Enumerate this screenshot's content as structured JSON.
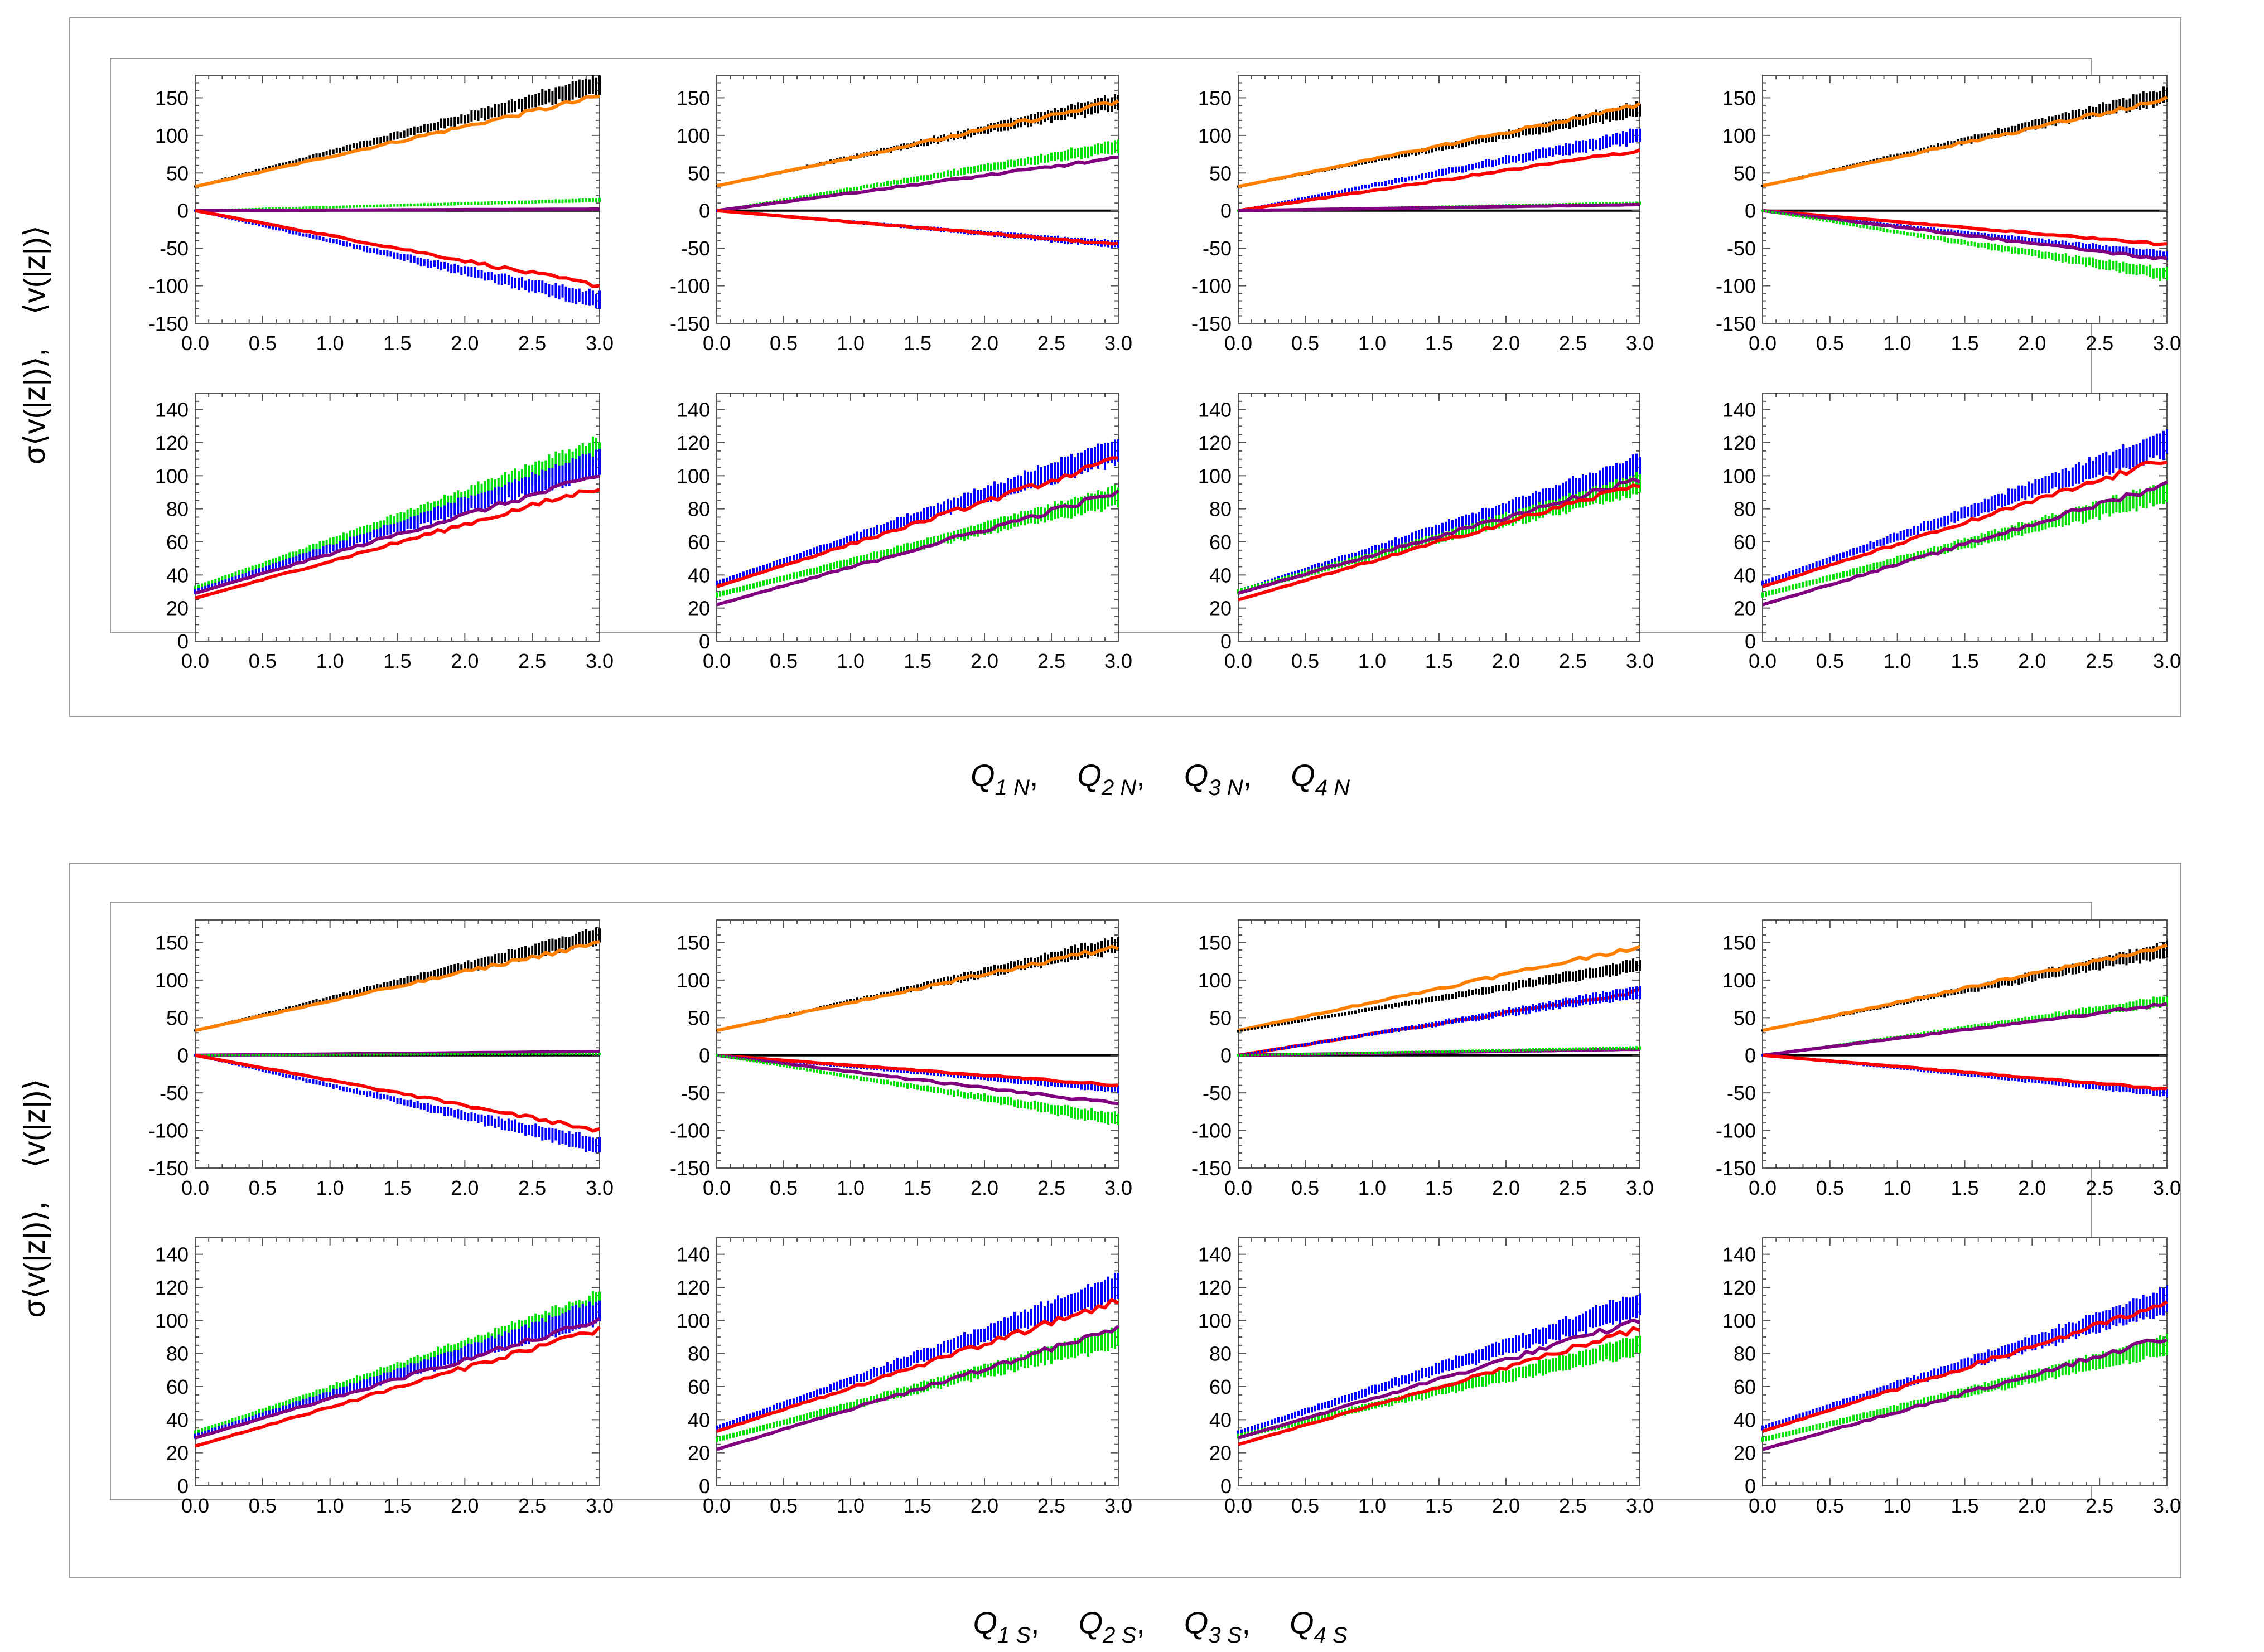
{
  "chart_data": [
    {
      "type": "line",
      "group": "N",
      "xlabel_parts": [
        {
          "main": "Q",
          "sub": "1 N",
          "sep": ","
        },
        {
          "main": "Q",
          "sub": "2 N",
          "sep": ","
        },
        {
          "main": "Q",
          "sub": "3 N",
          "sep": ","
        },
        {
          "main": "Q",
          "sub": "4 N",
          "sep": ""
        }
      ],
      "ylabel_top": "⟨v(|z|)⟩",
      "ylabel_bottom": "σ⟨v(|z|)⟩,",
      "xlim": [
        0,
        3
      ],
      "xticks": [
        "0.0",
        "0.5",
        "1.0",
        "1.5",
        "2.0",
        "2.5",
        "3.0"
      ],
      "top_ylim": [
        -150,
        180
      ],
      "top_yticks": [
        "150",
        "100",
        "50",
        "0",
        "-50",
        "-100",
        "-150"
      ],
      "bottom_ylim": [
        0,
        150
      ],
      "bottom_yticks": [
        "140",
        "120",
        "100",
        "80",
        "60",
        "40",
        "20",
        "0"
      ],
      "panels_top": [
        {
          "series": [
            {
              "color": "#000000",
              "style": "errorbar",
              "start": 32,
              "end": 168
            },
            {
              "color": "#ff8000",
              "style": "line",
              "start": 32,
              "end": 152
            },
            {
              "color": "#00e000",
              "style": "errorbar",
              "start": 0,
              "end": 14
            },
            {
              "color": "#800080",
              "style": "line",
              "start": 0,
              "end": 2
            },
            {
              "color": "#0000ff",
              "style": "errorbar",
              "start": 0,
              "end": -120
            },
            {
              "color": "#ff0000",
              "style": "line",
              "start": 0,
              "end": -100
            }
          ]
        },
        {
          "series": [
            {
              "color": "#000000",
              "style": "errorbar",
              "start": 33,
              "end": 145
            },
            {
              "color": "#ff8000",
              "style": "line",
              "start": 33,
              "end": 145
            },
            {
              "color": "#00e000",
              "style": "errorbar",
              "start": 0,
              "end": 85
            },
            {
              "color": "#800080",
              "style": "line",
              "start": 0,
              "end": 70
            },
            {
              "color": "#0000ff",
              "style": "errorbar",
              "start": 0,
              "end": -45
            },
            {
              "color": "#ff0000",
              "style": "line",
              "start": 0,
              "end": -45
            }
          ]
        },
        {
          "series": [
            {
              "color": "#000000",
              "style": "errorbar",
              "start": 32,
              "end": 135
            },
            {
              "color": "#ff8000",
              "style": "line",
              "start": 32,
              "end": 140
            },
            {
              "color": "#0000ff",
              "style": "errorbar",
              "start": 0,
              "end": 100
            },
            {
              "color": "#ff0000",
              "style": "line",
              "start": 0,
              "end": 80
            },
            {
              "color": "#00e000",
              "style": "errorbar",
              "start": 0,
              "end": 10
            },
            {
              "color": "#800080",
              "style": "line",
              "start": 0,
              "end": 8
            }
          ]
        },
        {
          "series": [
            {
              "color": "#000000",
              "style": "errorbar",
              "start": 33,
              "end": 153
            },
            {
              "color": "#ff8000",
              "style": "line",
              "start": 33,
              "end": 148
            },
            {
              "color": "#0000ff",
              "style": "errorbar",
              "start": 0,
              "end": -60
            },
            {
              "color": "#ff0000",
              "style": "line",
              "start": 0,
              "end": -45
            },
            {
              "color": "#800080",
              "style": "line",
              "start": 0,
              "end": -65
            },
            {
              "color": "#00e000",
              "style": "errorbar",
              "start": 0,
              "end": -85
            }
          ]
        }
      ],
      "panels_bottom": [
        {
          "series": [
            {
              "color": "#00e000",
              "style": "errorbar",
              "start": 32,
              "end": 115
            },
            {
              "color": "#0000ff",
              "style": "errorbar",
              "start": 30,
              "end": 108
            },
            {
              "color": "#800080",
              "style": "line",
              "start": 29,
              "end": 100
            },
            {
              "color": "#ff0000",
              "style": "line",
              "start": 26,
              "end": 93
            }
          ]
        },
        {
          "series": [
            {
              "color": "#0000ff",
              "style": "errorbar",
              "start": 35,
              "end": 115
            },
            {
              "color": "#ff0000",
              "style": "line",
              "start": 33,
              "end": 110
            },
            {
              "color": "#00e000",
              "style": "errorbar",
              "start": 28,
              "end": 88
            },
            {
              "color": "#800080",
              "style": "line",
              "start": 22,
              "end": 90
            }
          ]
        },
        {
          "series": [
            {
              "color": "#0000ff",
              "style": "errorbar",
              "start": 30,
              "end": 105
            },
            {
              "color": "#00e000",
              "style": "errorbar",
              "start": 30,
              "end": 95
            },
            {
              "color": "#800080",
              "style": "line",
              "start": 29,
              "end": 98
            },
            {
              "color": "#ff0000",
              "style": "line",
              "start": 25,
              "end": 95
            }
          ]
        },
        {
          "series": [
            {
              "color": "#0000ff",
              "style": "errorbar",
              "start": 35,
              "end": 120
            },
            {
              "color": "#ff0000",
              "style": "line",
              "start": 33,
              "end": 110
            },
            {
              "color": "#00e000",
              "style": "errorbar",
              "start": 28,
              "end": 90
            },
            {
              "color": "#800080",
              "style": "line",
              "start": 22,
              "end": 95
            }
          ]
        }
      ]
    },
    {
      "type": "line",
      "group": "S",
      "xlabel_parts": [
        {
          "main": "Q",
          "sub": "1 S",
          "sep": ","
        },
        {
          "main": "Q",
          "sub": "2 S",
          "sep": ","
        },
        {
          "main": "Q",
          "sub": "3 S",
          "sep": ","
        },
        {
          "main": "Q",
          "sub": "4 S",
          "sep": ""
        }
      ],
      "ylabel_top": "⟨v(|z|)⟩",
      "ylabel_bottom": "σ⟨v(|z|)⟩,",
      "xlim": [
        0,
        3
      ],
      "xticks": [
        "0.0",
        "0.5",
        "1.0",
        "1.5",
        "2.0",
        "2.5",
        "3.0"
      ],
      "top_ylim": [
        -150,
        180
      ],
      "top_yticks": [
        "150",
        "100",
        "50",
        "0",
        "-50",
        "-100",
        "-150"
      ],
      "bottom_ylim": [
        0,
        150
      ],
      "bottom_yticks": [
        "140",
        "120",
        "100",
        "80",
        "60",
        "40",
        "20",
        "0"
      ],
      "panels_top": [
        {
          "series": [
            {
              "color": "#000000",
              "style": "errorbar",
              "start": 33,
              "end": 160
            },
            {
              "color": "#ff8000",
              "style": "line",
              "start": 33,
              "end": 150
            },
            {
              "color": "#800080",
              "style": "line",
              "start": 0,
              "end": 5
            },
            {
              "color": "#00e000",
              "style": "errorbar",
              "start": 0,
              "end": 2
            },
            {
              "color": "#0000ff",
              "style": "errorbar",
              "start": 0,
              "end": -120
            },
            {
              "color": "#ff0000",
              "style": "line",
              "start": 0,
              "end": -100
            }
          ]
        },
        {
          "series": [
            {
              "color": "#000000",
              "style": "errorbar",
              "start": 33,
              "end": 148
            },
            {
              "color": "#ff8000",
              "style": "line",
              "start": 33,
              "end": 145
            },
            {
              "color": "#0000ff",
              "style": "errorbar",
              "start": 0,
              "end": -45
            },
            {
              "color": "#ff0000",
              "style": "line",
              "start": 0,
              "end": -40
            },
            {
              "color": "#800080",
              "style": "line",
              "start": 0,
              "end": -65
            },
            {
              "color": "#00e000",
              "style": "errorbar",
              "start": 0,
              "end": -85
            }
          ]
        },
        {
          "series": [
            {
              "color": "#ff8000",
              "style": "line",
              "start": 33,
              "end": 145
            },
            {
              "color": "#000000",
              "style": "errorbar",
              "start": 32,
              "end": 120
            },
            {
              "color": "#ff0000",
              "style": "line",
              "start": 0,
              "end": 85
            },
            {
              "color": "#0000ff",
              "style": "errorbar",
              "start": 0,
              "end": 85
            },
            {
              "color": "#800080",
              "style": "line",
              "start": 0,
              "end": 8
            },
            {
              "color": "#00e000",
              "style": "errorbar",
              "start": 0,
              "end": 10
            }
          ]
        },
        {
          "series": [
            {
              "color": "#000000",
              "style": "errorbar",
              "start": 33,
              "end": 140
            },
            {
              "color": "#ff8000",
              "style": "line",
              "start": 33,
              "end": 145
            },
            {
              "color": "#00e000",
              "style": "errorbar",
              "start": 0,
              "end": 72
            },
            {
              "color": "#800080",
              "style": "line",
              "start": 0,
              "end": 68
            },
            {
              "color": "#0000ff",
              "style": "errorbar",
              "start": 0,
              "end": -50
            },
            {
              "color": "#ff0000",
              "style": "line",
              "start": 0,
              "end": -45
            }
          ]
        }
      ],
      "panels_bottom": [
        {
          "series": [
            {
              "color": "#00e000",
              "style": "errorbar",
              "start": 32,
              "end": 110
            },
            {
              "color": "#0000ff",
              "style": "errorbar",
              "start": 30,
              "end": 105
            },
            {
              "color": "#800080",
              "style": "line",
              "start": 29,
              "end": 100
            },
            {
              "color": "#ff0000",
              "style": "line",
              "start": 24,
              "end": 95
            }
          ]
        },
        {
          "series": [
            {
              "color": "#0000ff",
              "style": "errorbar",
              "start": 35,
              "end": 120
            },
            {
              "color": "#ff0000",
              "style": "line",
              "start": 33,
              "end": 112
            },
            {
              "color": "#00e000",
              "style": "errorbar",
              "start": 28,
              "end": 90
            },
            {
              "color": "#800080",
              "style": "line",
              "start": 22,
              "end": 95
            }
          ]
        },
        {
          "series": [
            {
              "color": "#0000ff",
              "style": "errorbar",
              "start": 32,
              "end": 110
            },
            {
              "color": "#00e000",
              "style": "errorbar",
              "start": 30,
              "end": 85
            },
            {
              "color": "#800080",
              "style": "line",
              "start": 29,
              "end": 100
            },
            {
              "color": "#ff0000",
              "style": "line",
              "start": 25,
              "end": 95
            }
          ]
        },
        {
          "series": [
            {
              "color": "#0000ff",
              "style": "errorbar",
              "start": 35,
              "end": 112
            },
            {
              "color": "#ff0000",
              "style": "line",
              "start": 33,
              "end": 110
            },
            {
              "color": "#00e000",
              "style": "errorbar",
              "start": 28,
              "end": 85
            },
            {
              "color": "#800080",
              "style": "line",
              "start": 22,
              "end": 90
            }
          ]
        }
      ]
    }
  ]
}
